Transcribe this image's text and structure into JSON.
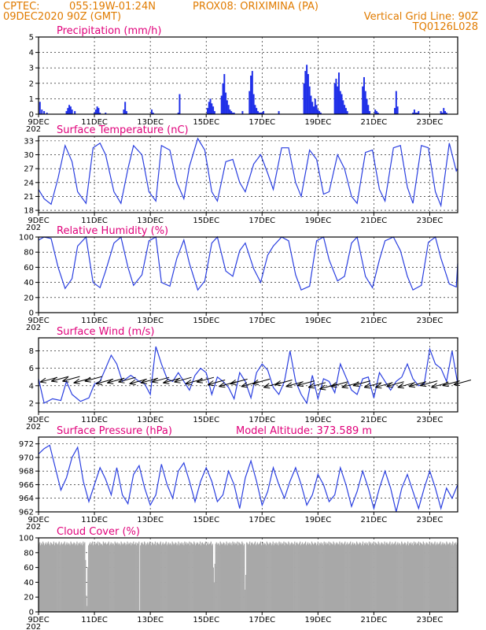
{
  "header": {
    "line1_left": "CPTEC:",
    "line1_coords": "055:19W-01:24N",
    "line1_station": "PROX08: ORIXIMINA (PA)",
    "line2_left": "09DEC2020 90Z (GMT)",
    "line2_right": "Vertical Grid Line: 90Z",
    "line3_right": "TQ0126L028",
    "model_altitude": "Model Altitude: 373.589 m"
  },
  "colors": {
    "header": "#e07b00",
    "title": "#e0007a",
    "series": "#2a3fe0",
    "bars": "#2030e8",
    "cloud": "#a8a8a8"
  },
  "x_axis": {
    "ticks": [
      "9DEC",
      "11DEC",
      "13DEC",
      "15DEC",
      "17DEC",
      "19DEC",
      "21DEC",
      "23DEC"
    ],
    "tick_days": [
      0,
      2,
      4,
      6,
      8,
      10,
      12,
      14
    ],
    "range_days": [
      0,
      15
    ],
    "year_fragment": "202"
  },
  "chart_data": [
    {
      "type": "bar",
      "title": "Precipitation (mm/h)",
      "ylim": [
        0,
        5
      ],
      "yticks": [
        0,
        1,
        2,
        3,
        4,
        5
      ],
      "x_days": [
        0.05,
        0.12,
        0.2,
        0.3,
        1.0,
        1.05,
        1.1,
        1.15,
        1.2,
        1.3,
        2.0,
        2.05,
        2.1,
        2.15,
        2.2,
        2.4,
        3.05,
        3.1,
        3.15,
        4.05,
        4.1,
        5.0,
        5.05,
        6.05,
        6.1,
        6.15,
        6.2,
        6.25,
        6.3,
        6.55,
        6.6,
        6.65,
        6.7,
        6.75,
        6.8,
        6.85,
        6.9,
        6.95,
        7.0,
        7.3,
        7.55,
        7.6,
        7.65,
        7.7,
        7.75,
        7.8,
        7.85,
        7.9,
        7.95,
        8.0,
        8.05,
        8.6,
        9.5,
        9.55,
        9.6,
        9.65,
        9.7,
        9.75,
        9.8,
        9.85,
        9.9,
        9.95,
        10.0,
        10.05,
        10.1,
        10.6,
        10.65,
        10.7,
        10.75,
        10.8,
        10.85,
        10.9,
        10.95,
        11.0,
        11.05,
        11.6,
        11.65,
        11.7,
        11.75,
        11.8,
        11.85,
        12.05,
        12.1,
        12.15,
        12.75,
        12.8,
        12.85,
        13.4,
        13.45,
        13.5,
        13.55,
        13.6,
        14.4,
        14.45,
        14.5,
        14.55,
        14.6
      ],
      "values": [
        0.8,
        0.3,
        0.2,
        0.1,
        0.2,
        0.4,
        0.6,
        0.5,
        0.3,
        0.2,
        0.1,
        0.3,
        0.5,
        0.4,
        0.1,
        0.1,
        0.3,
        0.8,
        0.2,
        0.3,
        0.1,
        0.1,
        1.3,
        0.4,
        0.8,
        1.0,
        0.7,
        0.5,
        0.2,
        1.2,
        2.0,
        2.6,
        1.4,
        0.9,
        0.6,
        0.3,
        0.2,
        0.1,
        0.1,
        0.2,
        1.5,
        2.5,
        2.8,
        1.3,
        0.6,
        0.4,
        0.2,
        0.1,
        0.1,
        0.1,
        0.2,
        0.2,
        2.0,
        2.8,
        3.2,
        2.6,
        1.8,
        1.2,
        0.8,
        0.5,
        1.0,
        0.6,
        0.3,
        0.2,
        0.1,
        2.0,
        2.3,
        1.8,
        2.7,
        1.5,
        1.3,
        0.9,
        0.6,
        0.4,
        0.2,
        1.8,
        2.4,
        1.5,
        1.0,
        0.6,
        0.2,
        0.3,
        0.2,
        0.1,
        0.4,
        1.5,
        0.5,
        0.1,
        0.3,
        0.1,
        0.1,
        0.2,
        0.2,
        0.1,
        0.4,
        0.2,
        0.1
      ]
    },
    {
      "type": "line",
      "title": "Surface Temperature (nC)",
      "ylim": [
        17.5,
        34
      ],
      "yticks": [
        18,
        21,
        24,
        27,
        30,
        33
      ],
      "x_days": [
        0,
        0.2,
        0.45,
        0.7,
        0.95,
        1.2,
        1.4,
        1.7,
        1.95,
        2.2,
        2.4,
        2.7,
        2.95,
        3.2,
        3.4,
        3.7,
        3.95,
        4.2,
        4.4,
        4.7,
        4.95,
        5.2,
        5.4,
        5.7,
        5.95,
        6.2,
        6.4,
        6.7,
        6.95,
        7.2,
        7.4,
        7.7,
        7.95,
        8.2,
        8.4,
        8.7,
        8.95,
        9.2,
        9.4,
        9.7,
        9.95,
        10.2,
        10.4,
        10.7,
        10.95,
        11.2,
        11.4,
        11.7,
        11.95,
        12.2,
        12.4,
        12.7,
        12.95,
        13.2,
        13.4,
        13.7,
        13.95,
        14.2,
        14.4,
        14.7,
        14.95,
        15
      ],
      "values": [
        22.5,
        20.5,
        19.3,
        25.0,
        32.0,
        28.5,
        22.0,
        19.5,
        31.5,
        32.5,
        30.0,
        22.0,
        19.5,
        27.0,
        32.0,
        30.0,
        22.0,
        20.0,
        32.0,
        31.0,
        24.0,
        20.5,
        27.5,
        33.5,
        31.0,
        22.0,
        20.0,
        28.5,
        29.0,
        24.0,
        22.0,
        28.0,
        30.0,
        26.0,
        22.5,
        31.5,
        31.5,
        24.0,
        21.0,
        31.0,
        29.0,
        21.5,
        22.0,
        30.0,
        27.0,
        21.0,
        19.5,
        30.5,
        31.0,
        22.5,
        20.0,
        31.5,
        32.0,
        23.0,
        19.5,
        32.0,
        31.5,
        22.0,
        19.0,
        32.5,
        26.5,
        27.0
      ]
    },
    {
      "type": "line",
      "title": "Relative Humidity (%)",
      "ylim": [
        0,
        100
      ],
      "yticks": [
        0,
        20,
        40,
        60,
        80,
        100
      ],
      "x_days": [
        0,
        0.2,
        0.45,
        0.7,
        0.95,
        1.2,
        1.4,
        1.7,
        1.95,
        2.2,
        2.4,
        2.7,
        2.95,
        3.2,
        3.4,
        3.7,
        3.95,
        4.2,
        4.4,
        4.7,
        4.95,
        5.2,
        5.4,
        5.7,
        5.95,
        6.2,
        6.4,
        6.7,
        6.95,
        7.2,
        7.4,
        7.7,
        7.95,
        8.2,
        8.4,
        8.7,
        8.95,
        9.2,
        9.4,
        9.7,
        9.95,
        10.2,
        10.4,
        10.7,
        10.95,
        11.2,
        11.4,
        11.7,
        11.95,
        12.2,
        12.4,
        12.7,
        12.95,
        13.2,
        13.4,
        13.7,
        13.95,
        14.2,
        14.4,
        14.7,
        14.95,
        15
      ],
      "values": [
        96,
        100,
        98,
        60,
        32,
        45,
        88,
        100,
        40,
        33,
        55,
        92,
        100,
        60,
        36,
        50,
        95,
        100,
        40,
        35,
        72,
        96,
        65,
        30,
        42,
        92,
        100,
        55,
        48,
        82,
        92,
        58,
        40,
        76,
        88,
        100,
        95,
        50,
        30,
        35,
        95,
        100,
        70,
        42,
        48,
        92,
        100,
        48,
        33,
        70,
        95,
        100,
        82,
        48,
        30,
        36,
        93,
        100,
        72,
        38,
        34,
        65
      ]
    },
    {
      "type": "line",
      "title": "Surface Wind (m/s)",
      "ylim": [
        1,
        9.5
      ],
      "yticks": [
        2,
        4,
        6,
        8
      ],
      "x_days": [
        0,
        0.2,
        0.5,
        0.8,
        1.0,
        1.2,
        1.5,
        1.8,
        2.0,
        2.2,
        2.4,
        2.6,
        2.8,
        3.0,
        3.3,
        3.6,
        3.8,
        4.0,
        4.2,
        4.4,
        4.6,
        4.8,
        5.0,
        5.2,
        5.4,
        5.6,
        5.8,
        6.0,
        6.2,
        6.4,
        6.6,
        6.8,
        7.0,
        7.2,
        7.4,
        7.6,
        7.8,
        8.0,
        8.2,
        8.4,
        8.6,
        8.8,
        9.0,
        9.2,
        9.4,
        9.6,
        9.8,
        10.0,
        10.2,
        10.4,
        10.6,
        10.8,
        11.0,
        11.2,
        11.4,
        11.6,
        11.8,
        12.0,
        12.2,
        12.4,
        12.6,
        12.8,
        13.0,
        13.2,
        13.4,
        13.6,
        13.8,
        14.0,
        14.2,
        14.4,
        14.6,
        14.8,
        15
      ],
      "values": [
        4.8,
        2.0,
        2.5,
        2.3,
        4.5,
        3.0,
        2.2,
        2.6,
        4.2,
        4.5,
        6.0,
        7.5,
        6.5,
        4.5,
        5.2,
        4.5,
        4.2,
        3.0,
        8.5,
        6.5,
        4.8,
        4.5,
        5.5,
        4.5,
        3.5,
        5.2,
        6.0,
        5.5,
        3.0,
        5.0,
        4.5,
        3.8,
        2.5,
        5.5,
        4.5,
        2.6,
        5.5,
        6.5,
        5.8,
        3.8,
        3.0,
        4.5,
        8.0,
        4.5,
        3.0,
        2.0,
        5.2,
        2.5,
        4.8,
        4.5,
        3.2,
        6.5,
        5.0,
        3.5,
        3.0,
        4.8,
        5.0,
        2.6,
        5.5,
        4.5,
        3.5,
        4.5,
        5.0,
        6.5,
        4.8,
        4.0,
        4.2,
        8.2,
        6.5,
        6.0,
        4.5,
        8.0,
        4.2
      ],
      "barb_x_days": [
        0,
        0.4,
        0.8,
        1.2,
        1.6,
        2.0,
        2.4,
        2.8,
        3.2,
        3.6,
        4.0,
        4.4,
        4.8,
        5.2,
        5.6,
        6.0,
        6.4,
        6.8,
        7.2,
        7.6,
        8.0,
        8.4,
        8.8,
        9.2,
        9.6,
        10.0,
        10.4,
        10.8,
        11.2,
        11.6,
        12.0,
        12.4,
        12.8,
        13.2,
        13.6,
        14.0,
        14.4,
        14.8
      ],
      "barb_y": [
        4.6,
        4.7,
        4.7,
        4.5,
        4.7,
        4.4,
        4.5,
        4.6,
        4.4,
        4.5,
        4.6,
        4.5,
        4.6,
        4.4,
        4.6,
        4.3,
        4.1,
        4.4,
        4.1,
        4.4,
        4.0,
        4.3,
        4.1,
        4.2,
        4.0,
        3.8,
        4.1,
        4.0,
        4.2,
        4.0,
        4.0,
        4.1,
        4.0,
        4.1,
        4.2,
        4.0,
        4.2,
        4.3
      ]
    },
    {
      "type": "line",
      "title": "Surface Pressure (hPa)",
      "ylim": [
        962,
        973
      ],
      "yticks": [
        962,
        964,
        966,
        968,
        970,
        972
      ],
      "x_days": [
        0,
        0.2,
        0.4,
        0.6,
        0.8,
        1.0,
        1.2,
        1.4,
        1.6,
        1.8,
        2.0,
        2.2,
        2.4,
        2.6,
        2.8,
        3.0,
        3.2,
        3.4,
        3.6,
        3.8,
        4.0,
        4.2,
        4.4,
        4.6,
        4.8,
        5.0,
        5.2,
        5.4,
        5.6,
        5.8,
        6.0,
        6.2,
        6.4,
        6.6,
        6.8,
        7.0,
        7.2,
        7.4,
        7.6,
        7.8,
        8.0,
        8.2,
        8.4,
        8.6,
        8.8,
        9.0,
        9.2,
        9.4,
        9.6,
        9.8,
        10.0,
        10.2,
        10.4,
        10.6,
        10.8,
        11.0,
        11.2,
        11.4,
        11.6,
        11.8,
        12.0,
        12.2,
        12.4,
        12.6,
        12.8,
        13.0,
        13.2,
        13.4,
        13.6,
        13.8,
        14.0,
        14.2,
        14.4,
        14.6,
        14.8,
        15
      ],
      "values": [
        970.5,
        971.3,
        971.8,
        968.5,
        965.2,
        967.0,
        970.0,
        971.5,
        966.5,
        963.5,
        966.0,
        968.5,
        966.8,
        964.5,
        968.5,
        964.5,
        963.2,
        967.5,
        968.8,
        965.5,
        963.0,
        964.5,
        969.0,
        966.0,
        964.0,
        968.0,
        969.2,
        966.5,
        963.5,
        966.5,
        968.5,
        966.5,
        963.5,
        964.5,
        968.0,
        966.0,
        962.5,
        967.0,
        969.5,
        966.5,
        963.0,
        965.0,
        968.5,
        966.0,
        964.0,
        966.5,
        968.5,
        966.0,
        963.0,
        964.5,
        967.5,
        966.0,
        963.5,
        964.5,
        968.5,
        966.0,
        962.8,
        965.0,
        968.0,
        965.5,
        962.5,
        965.5,
        968.0,
        965.5,
        962.0,
        965.5,
        967.5,
        965.0,
        962.5,
        965.5,
        968.0,
        965.5,
        962.5,
        965.5,
        964.0,
        966.0
      ]
    },
    {
      "type": "bar",
      "title": "Cloud Cover (%)",
      "ylim": [
        0,
        100
      ],
      "yticks": [
        0,
        20,
        40,
        60,
        80,
        100
      ],
      "values": [
        92,
        94,
        90,
        93,
        91,
        95,
        93,
        90,
        92,
        94,
        91,
        93,
        95,
        92,
        90,
        94,
        93,
        91,
        92,
        95,
        90,
        93,
        94,
        92,
        91,
        93,
        95,
        90,
        92,
        94,
        91,
        92,
        93,
        95,
        90,
        92,
        94,
        91,
        93,
        92,
        90,
        95,
        93,
        91,
        92,
        94,
        93,
        90,
        92,
        95,
        90,
        93,
        92,
        94,
        91,
        93,
        90,
        95,
        92,
        94,
        70,
        22,
        8,
        60,
        90,
        92,
        94,
        91,
        93,
        95,
        90,
        92,
        94,
        91,
        93,
        92,
        95,
        90,
        94,
        93,
        91,
        92,
        90,
        95,
        93,
        92,
        94,
        91,
        92,
        93,
        95,
        90,
        92,
        94,
        91,
        93,
        92,
        90,
        95,
        93,
        92,
        94,
        91,
        93,
        92,
        90,
        95,
        93,
        91,
        92,
        94,
        93,
        90,
        92,
        95,
        91,
        93,
        92,
        94,
        90,
        93,
        92,
        95,
        91,
        92,
        94,
        90,
        93,
        92,
        95,
        2,
        90,
        93,
        94,
        92,
        91,
        95,
        93,
        90,
        92,
        94,
        91,
        93,
        95,
        92,
        90,
        94,
        93,
        91,
        92,
        95,
        90,
        93,
        94,
        92,
        91,
        93,
        95,
        90,
        92,
        94,
        91,
        92,
        93,
        95,
        90,
        92,
        94,
        91,
        93,
        92,
        90,
        95,
        93,
        91,
        92,
        94,
        93,
        90,
        92,
        95,
        90,
        93,
        92,
        94,
        91,
        93,
        90,
        95,
        92,
        94,
        91,
        93,
        92,
        95,
        90,
        94,
        93,
        92,
        91,
        95,
        93,
        90,
        92,
        94,
        93,
        91,
        92,
        95,
        90,
        93,
        94,
        92,
        91,
        93,
        95,
        90,
        92,
        94,
        91,
        92,
        93,
        95,
        90,
        92,
        60,
        40,
        65,
        92,
        94,
        91,
        93,
        92,
        90,
        95,
        93,
        91,
        92,
        94,
        93,
        90,
        92,
        95,
        90,
        93,
        92,
        94,
        91,
        93,
        90,
        95,
        92,
        94,
        91,
        93,
        92,
        95,
        90,
        94,
        93,
        92,
        91,
        95,
        93,
        90,
        92,
        30,
        50,
        94,
        93,
        91,
        92,
        95,
        90,
        93,
        94,
        92,
        91,
        93,
        95,
        90,
        92,
        94,
        91,
        92,
        93,
        95,
        90,
        92,
        94,
        91,
        93,
        92,
        90,
        95,
        93,
        91,
        92,
        94,
        93,
        90,
        92,
        95,
        90,
        93,
        92,
        94,
        91,
        93,
        90,
        95,
        92,
        94,
        91,
        93,
        92,
        95,
        90,
        94,
        93,
        92,
        91,
        95,
        93,
        90,
        92,
        94,
        93,
        91,
        92,
        95,
        90,
        93,
        94,
        92,
        91,
        93,
        95,
        90,
        92,
        94,
        91,
        92,
        93,
        95,
        90,
        92,
        94,
        91,
        93,
        92,
        90,
        95,
        93,
        91,
        92,
        94,
        93,
        90,
        92,
        95,
        90,
        93,
        92,
        94,
        91,
        93,
        90,
        95,
        92,
        94,
        91,
        93,
        92,
        95,
        90,
        94,
        93,
        92,
        91,
        95,
        93,
        90,
        92,
        94,
        93,
        91,
        92,
        95,
        90,
        93,
        94,
        92,
        91,
        93,
        95,
        90,
        92,
        94,
        91,
        92,
        93,
        95,
        90,
        92,
        94,
        91,
        93,
        92,
        90,
        95,
        93,
        91,
        92,
        94,
        93,
        90,
        92,
        95,
        90,
        93,
        92,
        94,
        91,
        93,
        90,
        95,
        92,
        94,
        91,
        93,
        92,
        95,
        90,
        94,
        93,
        92,
        91,
        95,
        93,
        90,
        92,
        94,
        93,
        91,
        92,
        95,
        90,
        93,
        94,
        92,
        91,
        93,
        95,
        90,
        92,
        94,
        91,
        92,
        93,
        95,
        90,
        92,
        94,
        91,
        93,
        92,
        90,
        95,
        93,
        91,
        92,
        94,
        93,
        90,
        92,
        95,
        90,
        93,
        92,
        94,
        91,
        93,
        90,
        95,
        92,
        94,
        91,
        93,
        92,
        95,
        90,
        94,
        93,
        92,
        91,
        95,
        93,
        90,
        92,
        94,
        93,
        91,
        92,
        95,
        90,
        93,
        94,
        92,
        91,
        93,
        95,
        90,
        92,
        94,
        91,
        92,
        93,
        95,
        90,
        92,
        94,
        91,
        93,
        92,
        90,
        95,
        93,
        91,
        92,
        94,
        93,
        90,
        92,
        95,
        90,
        93,
        92,
        94,
        91,
        93
      ]
    }
  ]
}
